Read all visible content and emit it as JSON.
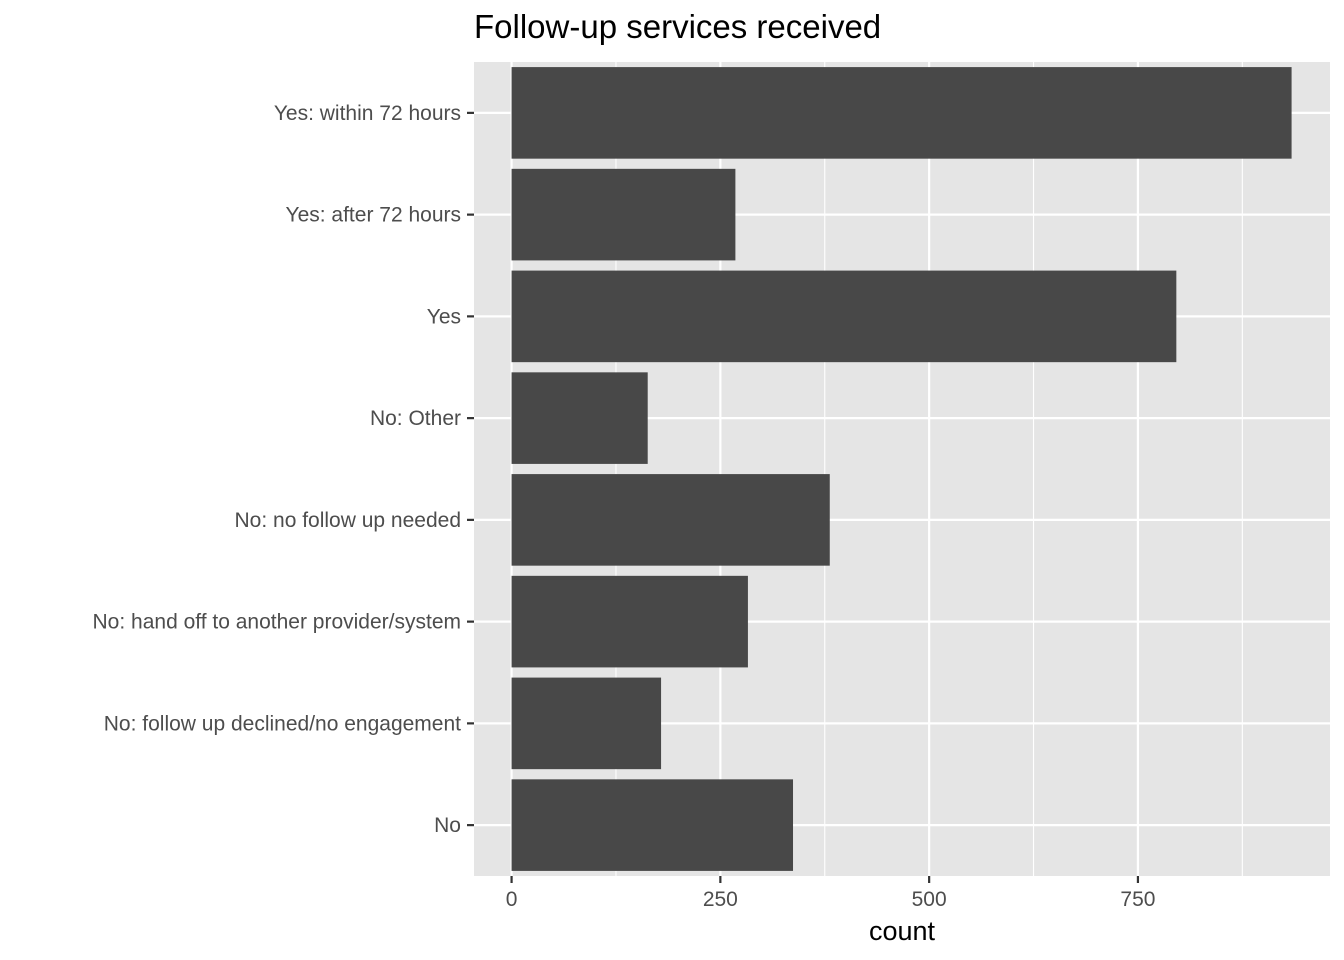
{
  "chart_data": {
    "type": "bar",
    "orientation": "horizontal",
    "title": "Follow-up services received",
    "xlabel": "count",
    "ylabel": "",
    "categories": [
      "Yes: within 72 hours",
      "Yes: after 72 hours",
      "Yes",
      "No: Other",
      "No: no follow up needed",
      "No: hand off to another provider/system",
      "No: follow up declined/no engagement",
      "No"
    ],
    "values": [
      934,
      268,
      796,
      163,
      381,
      283,
      179,
      337
    ],
    "xlim": [
      -45,
      980
    ],
    "x_ticks": [
      0,
      250,
      500,
      750
    ],
    "x_tick_labels": [
      "0",
      "250",
      "500",
      "750"
    ],
    "grid": true,
    "legend": "none",
    "colors": {
      "bar": "#484848",
      "panel": "#e5e5e5",
      "grid": "#ffffff"
    }
  }
}
